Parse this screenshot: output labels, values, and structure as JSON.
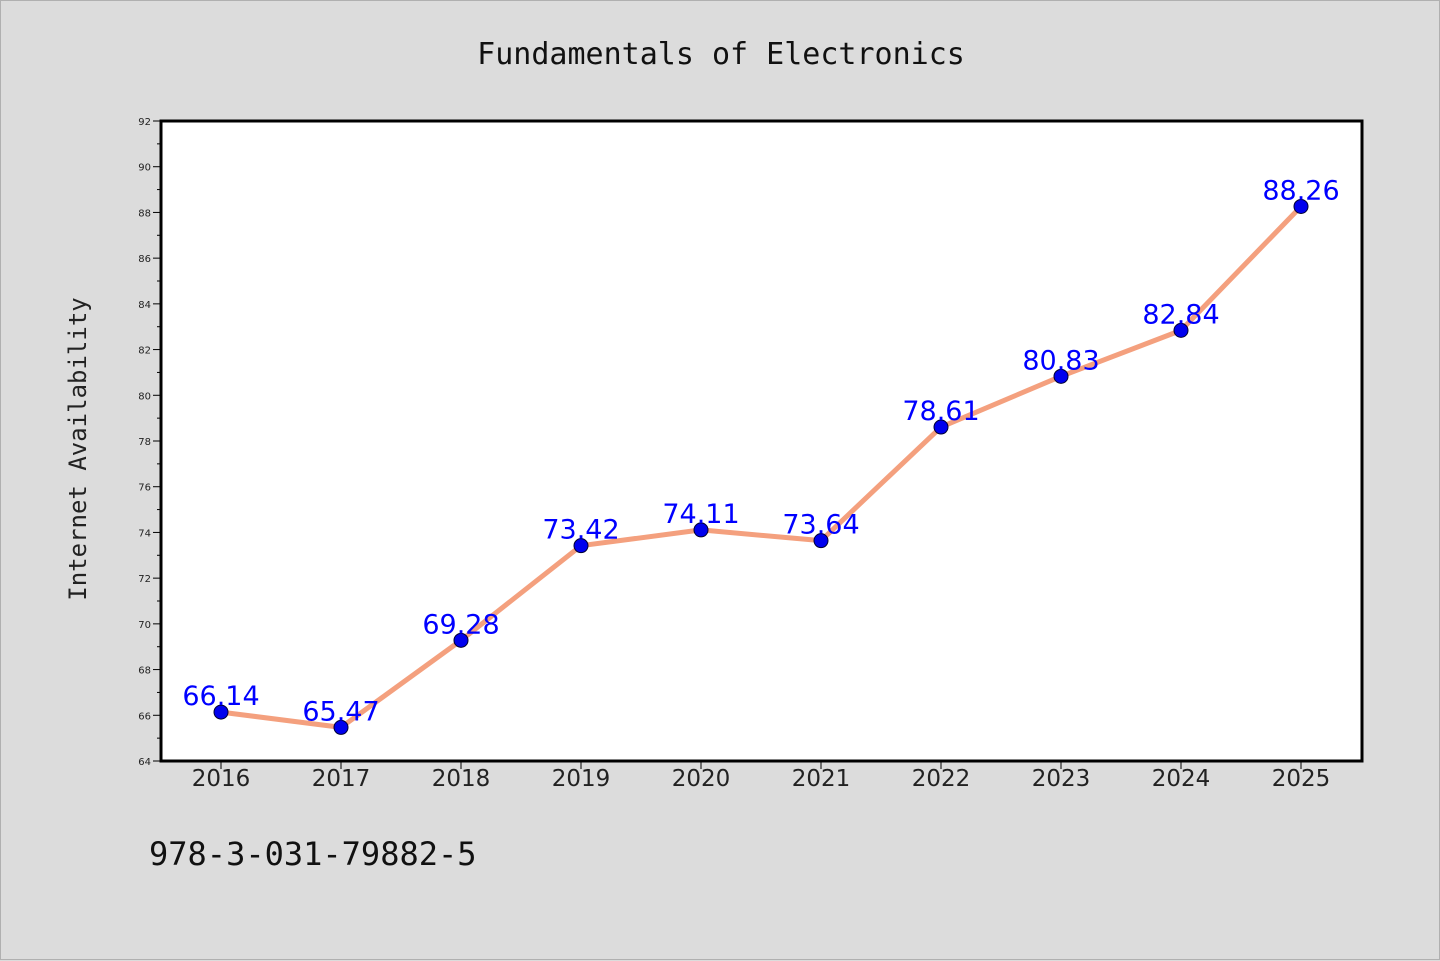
{
  "chart_data": {
    "type": "line",
    "title": "Fundamentals of Electronics",
    "xlabel": "",
    "ylabel": "Internet Availability",
    "categories": [
      "2016",
      "2017",
      "2018",
      "2019",
      "2020",
      "2021",
      "2022",
      "2023",
      "2024",
      "2025"
    ],
    "series": [
      {
        "values": [
          66.14,
          65.47,
          69.28,
          73.42,
          74.11,
          73.64,
          78.61,
          80.83,
          82.84,
          88.26
        ],
        "line_color": "#f4a07e",
        "marker_color": "#0000ee"
      }
    ],
    "data_labels": [
      "66.14",
      "65.47",
      "69.28",
      "73.42",
      "74.11",
      "73.64",
      "78.61",
      "80.83",
      "82.84",
      "88.26"
    ],
    "data_label_color": "#0000ff",
    "ylim": [
      64,
      92
    ],
    "yticks": [
      "64",
      "66",
      "68",
      "70",
      "72",
      "74",
      "76",
      "78",
      "80",
      "82",
      "84",
      "86",
      "88",
      "90",
      "92"
    ],
    "grid": false,
    "legend": "none"
  },
  "annotation": {
    "isbn": "978-3-031-79882-5"
  },
  "colors": {
    "figure_background": "#dcdcdc",
    "plot_background": "#ffffff"
  }
}
